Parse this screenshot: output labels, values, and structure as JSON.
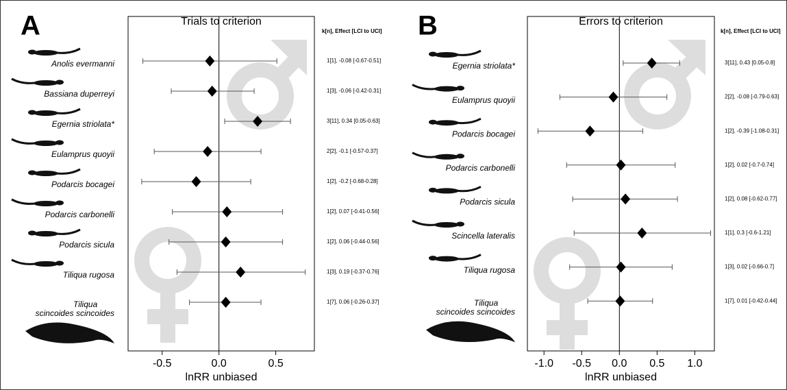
{
  "chart_data": [
    {
      "type": "forest",
      "panel": "A",
      "title": "Trials to criterion",
      "header": "k[n], Effect [LCI to UCI]",
      "xlabel": "lnRR unbiased",
      "categories": [
        "Anolis evermanni",
        "Bassiana duperreyi",
        "Egernia striolata*",
        "Eulamprus quoyii",
        "Podarcis bocagei",
        "Podarcis carbonelli",
        "Podarcis sicula",
        "Tiliqua rugosa",
        "Tiliqua scincoides scincoides"
      ],
      "values": [
        -0.08,
        -0.06,
        0.34,
        -0.1,
        -0.2,
        0.07,
        0.06,
        0.19,
        0.06
      ],
      "lower": [
        -0.67,
        -0.42,
        0.05,
        -0.57,
        -0.68,
        -0.41,
        -0.44,
        -0.37,
        -0.26
      ],
      "upper": [
        0.51,
        0.31,
        0.63,
        0.37,
        0.28,
        0.56,
        0.56,
        0.76,
        0.37
      ],
      "annotations": [
        "1[1], -0.08 [-0.67-0.51]",
        "1[3], -0.06 [-0.42-0.31]",
        "3[11], 0.34 [0.05-0.63]",
        "2[2], -0.1 [-0.57-0.37]",
        "1[2], -0.2 [-0.68-0.28]",
        "1[2], 0.07 [-0.41-0.56]",
        "1[2], 0.06 [-0.44-0.56]",
        "1[3], 0.19 [-0.37-0.76]",
        "1[7], 0.06 [-0.26-0.37]"
      ],
      "xlim": [
        -0.8,
        0.84
      ],
      "xticks": [
        -0.5,
        {
          "value": 0,
          "label": "0.0"
        },
        0.5
      ],
      "color": "#000000"
    },
    {
      "type": "forest",
      "panel": "B",
      "title": "Errors to criterion",
      "header": "k[n], Effect [LCI to UCI]",
      "xlabel": "lnRR unbiased",
      "categories": [
        "Egernia striolata*",
        "Eulamprus quoyii",
        "Podarcis bocagei",
        "Podarcis carbonelli",
        "Podarcis sicula",
        "Scincella lateralis",
        "Tiliqua rugosa",
        "Tiliqua scincoides scincoides"
      ],
      "values": [
        0.43,
        -0.08,
        -0.39,
        0.02,
        0.08,
        0.3,
        0.02,
        0.01
      ],
      "lower": [
        0.05,
        -0.79,
        -1.08,
        -0.7,
        -0.62,
        -0.6,
        -0.66,
        -0.42
      ],
      "upper": [
        0.8,
        0.63,
        0.31,
        0.74,
        0.77,
        1.21,
        0.7,
        0.44
      ],
      "annotations": [
        "3[11], 0.43 [0.05-0.8]",
        "2[2], -0.08 [-0.79-0.63]",
        "1[2], -0.39 [-1.08-0.31]",
        "1[2], 0.02 [-0.7-0.74]",
        "1[2], 0.08 [-0.62-0.77]",
        "1[1], 0.3 [-0.6-1.21]",
        "1[3], 0.02 [-0.66-0.7]",
        "1[7], 0.01 [-0.42-0.44]"
      ],
      "xlim": [
        -1.22,
        1.26
      ],
      "xticks": [
        {
          "value": -1,
          "label": "-1.0"
        },
        -0.5,
        {
          "value": 0,
          "label": "0.0"
        },
        0.5,
        {
          "value": 1,
          "label": "1.0"
        }
      ],
      "color": "#000000"
    }
  ]
}
